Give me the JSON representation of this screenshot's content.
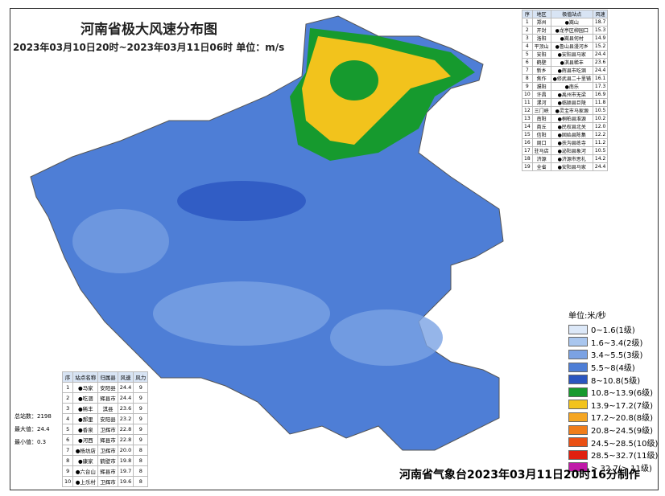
{
  "header": {
    "title": "河南省极大风速分布图",
    "subtitle": "2023年03月10日20时~2023年03月11日06时 单位：m/s"
  },
  "region_table": {
    "columns": [
      "序",
      "地区",
      "极值站点",
      "风速"
    ],
    "rows": [
      [
        "1",
        "郑州",
        "●嵩山",
        "18.7"
      ],
      [
        "2",
        "开封",
        "●龙亭区柳园口",
        "15.3"
      ],
      [
        "3",
        "洛阳",
        "●嵩县何村",
        "14.9"
      ],
      [
        "4",
        "平顶山",
        "●鲁山县漫河乡",
        "15.2"
      ],
      [
        "5",
        "安阳",
        "●安阳县马家",
        "24.4"
      ],
      [
        "6",
        "鹤壁",
        "●淇县稀丰",
        "23.6"
      ],
      [
        "7",
        "新乡",
        "●辉县市吃涸",
        "24.4"
      ],
      [
        "8",
        "焦作",
        "●修武县二十里铺",
        "16.1"
      ],
      [
        "9",
        "濮阳",
        "●南乐",
        "17.3"
      ],
      [
        "10",
        "许昌",
        "●禹州市无梁",
        "16.9"
      ],
      [
        "11",
        "漯河",
        "●临颍县巨陵",
        "11.8"
      ],
      [
        "12",
        "三门峡",
        "●灵宝市马家塬",
        "10.5"
      ],
      [
        "13",
        "南阳",
        "●桐柏县淮源",
        "10.2"
      ],
      [
        "14",
        "商丘",
        "●民权县北关",
        "12.0"
      ],
      [
        "15",
        "信阳",
        "●固始县陈集",
        "12.2"
      ],
      [
        "16",
        "周口",
        "●扶沟县练寺",
        "11.2"
      ],
      [
        "17",
        "驻马店",
        "●泌阳县象河",
        "10.5"
      ],
      [
        "18",
        "济源",
        "●济源市思礼",
        "14.2"
      ],
      [
        "19",
        "全省",
        "●安阳县马家",
        "24.4"
      ]
    ]
  },
  "station_table": {
    "columns": [
      "序",
      "站点名称",
      "归属县",
      "风速",
      "风力"
    ],
    "rows": [
      [
        "1",
        "●马家",
        "安阳县",
        "24.4",
        "9"
      ],
      [
        "2",
        "●吃涸",
        "辉县市",
        "24.4",
        "9"
      ],
      [
        "3",
        "●稀丰",
        "淇县",
        "23.6",
        "9"
      ],
      [
        "4",
        "●郝里",
        "安阳县",
        "23.2",
        "9"
      ],
      [
        "5",
        "●香泉",
        "卫辉市",
        "22.8",
        "9"
      ],
      [
        "6",
        "●河西",
        "辉县市",
        "22.8",
        "9"
      ],
      [
        "7",
        "●杨坊店",
        "卫辉市",
        "20.0",
        "8"
      ],
      [
        "8",
        "●康家",
        "鹤壁市",
        "19.8",
        "8"
      ],
      [
        "9",
        "●六台山",
        "辉县市",
        "19.7",
        "8"
      ],
      [
        "10",
        "●上乐村",
        "卫辉市",
        "19.6",
        "8"
      ]
    ]
  },
  "stats": [
    "总站数：2198",
    "最大值：24.4",
    "最小值：0.3"
  ],
  "legend": {
    "title": "单位:米/秒",
    "items": [
      {
        "label": "0~1.6(1级)",
        "color": "#dce8f8"
      },
      {
        "label": "1.6~3.4(2级)",
        "color": "#a9c6ee"
      },
      {
        "label": "3.4~5.5(3级)",
        "color": "#7ba2e3"
      },
      {
        "label": "5.5~8(4级)",
        "color": "#4e7ed6"
      },
      {
        "label": "8~10.8(5级)",
        "color": "#2a55c0"
      },
      {
        "label": "10.8~13.9(6级)",
        "color": "#169a2e"
      },
      {
        "label": "13.9~17.2(7级)",
        "color": "#f2c31c"
      },
      {
        "label": "17.2~20.8(8级)",
        "color": "#f5a623"
      },
      {
        "label": "20.8~24.5(9级)",
        "color": "#f07d1a"
      },
      {
        "label": "24.5~28.5(10级)",
        "color": "#ea5014"
      },
      {
        "label": "28.5~32.7(11级)",
        "color": "#e02010"
      },
      {
        "label": "> 32.7(> 11级)",
        "color": "#c01aa8"
      }
    ]
  },
  "footer": "河南省气象台2023年03月11日20时16分制作"
}
